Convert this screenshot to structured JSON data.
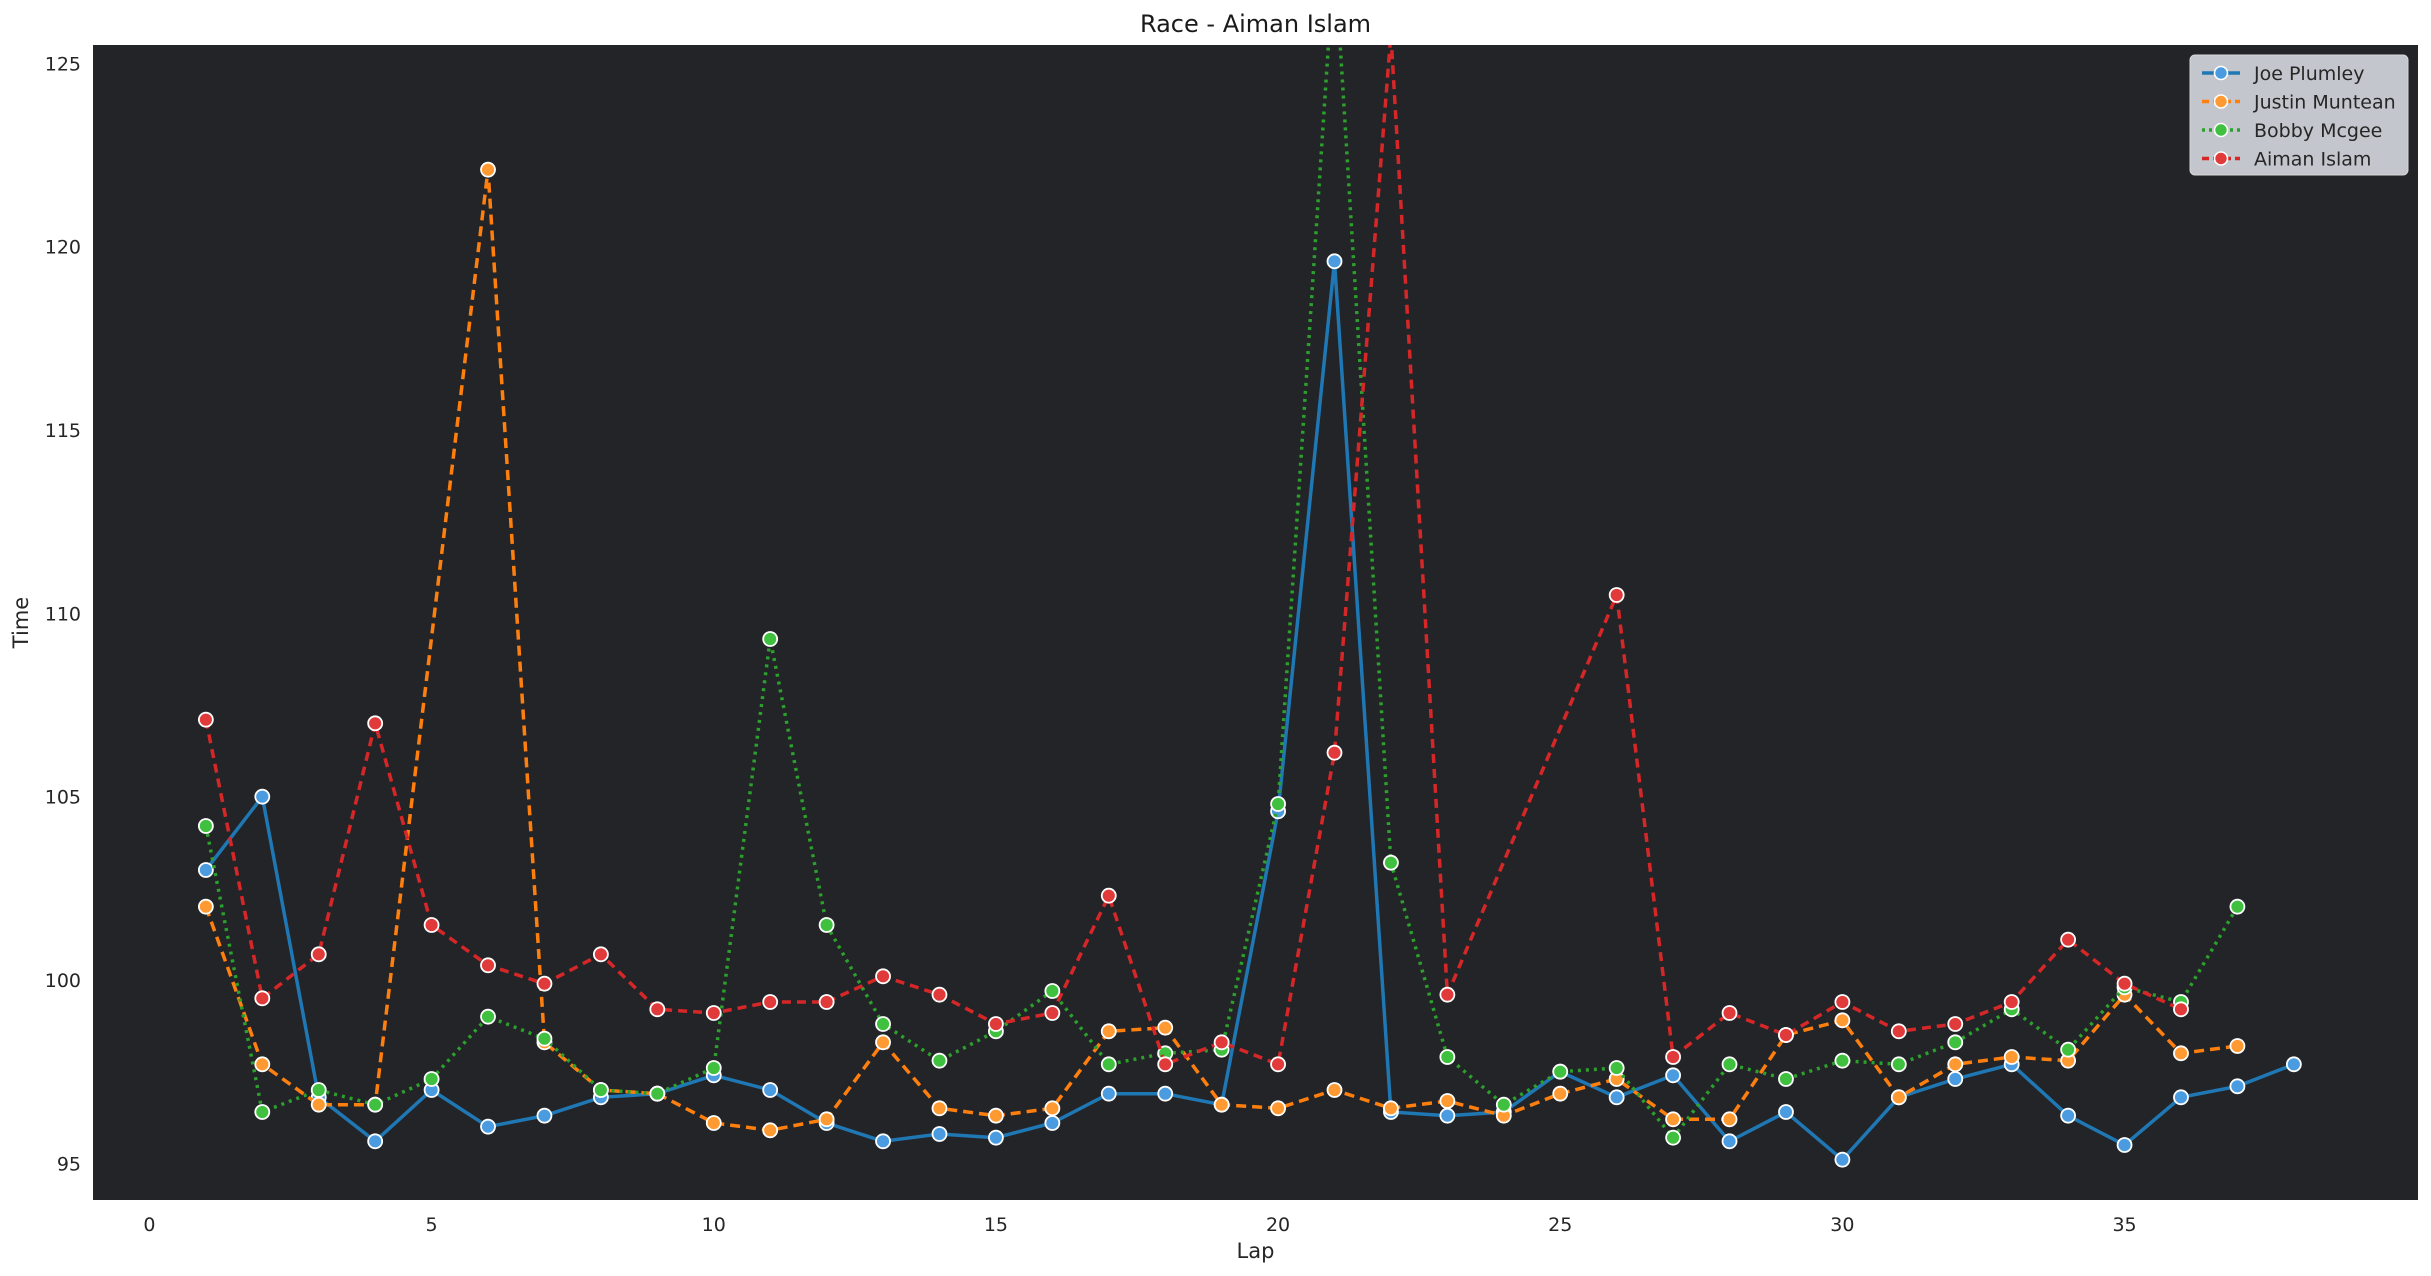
{
  "chart_data": {
    "type": "line",
    "title": "Race - Aiman Islam",
    "xlabel": "Lap",
    "ylabel": "Time",
    "xlim": [
      -1,
      40.2
    ],
    "ylim": [
      94.0,
      125.5
    ],
    "xticks": [
      0,
      5,
      10,
      15,
      20,
      25,
      30,
      35
    ],
    "yticks": [
      95,
      100,
      105,
      110,
      115,
      120,
      125
    ],
    "grid": false,
    "legend_position": "top-right",
    "background": "#222427",
    "series": [
      {
        "name": "Joe Plumley",
        "color": "#1f77b4",
        "marker_color": "#4a9be0",
        "dash": "solid",
        "x": [
          1,
          2,
          3,
          4,
          5,
          6,
          7,
          8,
          9,
          10,
          11,
          12,
          13,
          14,
          15,
          16,
          17,
          18,
          19,
          20,
          21,
          22,
          23,
          24,
          25,
          26,
          27,
          28,
          29,
          30,
          31,
          32,
          33,
          34,
          35,
          36,
          37,
          38
        ],
        "y": [
          103.0,
          105.0,
          96.8,
          95.6,
          97.0,
          96.0,
          96.3,
          96.8,
          96.9,
          97.4,
          97.0,
          96.1,
          95.6,
          95.8,
          95.7,
          96.1,
          96.9,
          96.9,
          96.6,
          104.6,
          119.6,
          96.4,
          96.3,
          96.4,
          97.5,
          96.8,
          97.4,
          95.6,
          96.4,
          95.1,
          96.8,
          97.3,
          97.7,
          96.3,
          95.5,
          96.8,
          97.1,
          97.7
        ]
      },
      {
        "name": "Justin Muntean",
        "color": "#ff7f0e",
        "marker_color": "#ff9a33",
        "dash": "10,6",
        "x": [
          1,
          2,
          3,
          4,
          5,
          6,
          7,
          8,
          9,
          10,
          11,
          12,
          13,
          14,
          15,
          16,
          17,
          18,
          19,
          20,
          21,
          22,
          23,
          24,
          25,
          26,
          27,
          28,
          29,
          30,
          31,
          32,
          33,
          34,
          35,
          36,
          37
        ],
        "y": [
          102.0,
          97.7,
          96.6,
          96.6,
          null,
          122.1,
          98.3,
          97.0,
          96.9,
          96.1,
          95.9,
          96.2,
          98.3,
          96.5,
          96.3,
          96.5,
          98.6,
          98.7,
          96.6,
          96.5,
          97.0,
          96.5,
          96.7,
          96.3,
          96.9,
          97.3,
          96.2,
          96.2,
          98.5,
          98.9,
          96.8,
          97.7,
          97.9,
          97.8,
          99.6,
          98.0,
          98.2
        ]
      },
      {
        "name": "Bobby Mcgee",
        "color": "#2ca02c",
        "marker_color": "#3fc03f",
        "dash": "3,5",
        "x": [
          1,
          2,
          3,
          4,
          5,
          6,
          7,
          8,
          9,
          10,
          11,
          12,
          13,
          14,
          15,
          16,
          17,
          18,
          19,
          20,
          21,
          22,
          23,
          24,
          25,
          26,
          27,
          28,
          29,
          30,
          31,
          32,
          33,
          34,
          35,
          36,
          37
        ],
        "y": [
          104.2,
          96.4,
          97.0,
          96.6,
          97.3,
          99.0,
          98.4,
          97.0,
          96.9,
          97.6,
          109.3,
          101.5,
          98.8,
          97.8,
          98.6,
          99.7,
          97.7,
          98.0,
          98.1,
          104.8,
          128.0,
          103.2,
          97.9,
          96.6,
          97.5,
          97.6,
          95.7,
          97.7,
          97.3,
          97.8,
          97.7,
          98.3,
          99.2,
          98.1,
          99.8,
          99.4,
          102.0
        ]
      },
      {
        "name": "Aiman Islam",
        "color": "#d62728",
        "marker_color": "#e03a3a",
        "dash": "9,6",
        "x": [
          1,
          2,
          3,
          4,
          5,
          6,
          7,
          8,
          9,
          10,
          11,
          12,
          13,
          14,
          15,
          16,
          17,
          18,
          19,
          20,
          21,
          22,
          23,
          24,
          25,
          26,
          27,
          28,
          29,
          30,
          31,
          32,
          33,
          34,
          35,
          36
        ],
        "y": [
          107.1,
          99.5,
          100.7,
          107.0,
          101.5,
          100.4,
          99.9,
          100.7,
          99.2,
          99.1,
          99.4,
          99.4,
          100.1,
          99.6,
          98.8,
          99.1,
          102.3,
          97.7,
          98.3,
          97.7,
          106.2,
          125.8,
          99.6,
          null,
          null,
          110.5,
          97.9,
          99.1,
          98.5,
          99.4,
          98.6,
          98.8,
          99.4,
          101.1,
          99.9,
          99.2
        ]
      }
    ]
  }
}
